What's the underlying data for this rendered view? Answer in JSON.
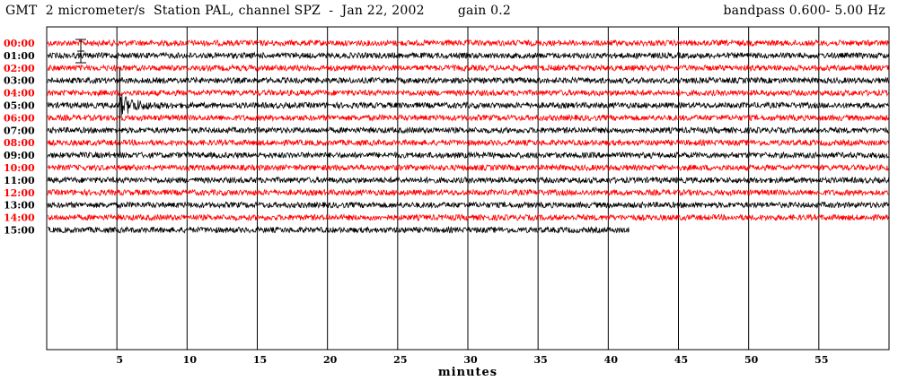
{
  "header": {
    "left": "GMT  2 micrometer/s  Station PAL, channel SPZ  -  Jan 22, 2002        gain 0.2",
    "right": "bandpass 0.600- 5.00 Hz"
  },
  "chart_data": {
    "type": "line",
    "title": "",
    "xlabel": "minutes",
    "ylabel": "",
    "xlim": [
      0,
      60
    ],
    "x_ticks": [
      5,
      10,
      15,
      20,
      25,
      30,
      35,
      40,
      45,
      50,
      55
    ],
    "grid": "vertical lines every 5 minutes",
    "colors": {
      "even_hours": "#ff0000",
      "odd_hours": "#000000",
      "frame": "#000000"
    },
    "hours": [
      "00:00",
      "01:00",
      "02:00",
      "03:00",
      "04:00",
      "05:00",
      "06:00",
      "07:00",
      "08:00",
      "09:00",
      "10:00",
      "11:00",
      "12:00",
      "13:00",
      "14:00",
      "15:00"
    ],
    "series_end_minute": [
      60,
      60,
      60,
      60,
      60,
      60,
      60,
      60,
      60,
      60,
      60,
      60,
      60,
      60,
      60,
      41.5
    ],
    "event": {
      "hour_line": "05:00",
      "start_minute": 5.2,
      "end_minute": 9
    }
  }
}
